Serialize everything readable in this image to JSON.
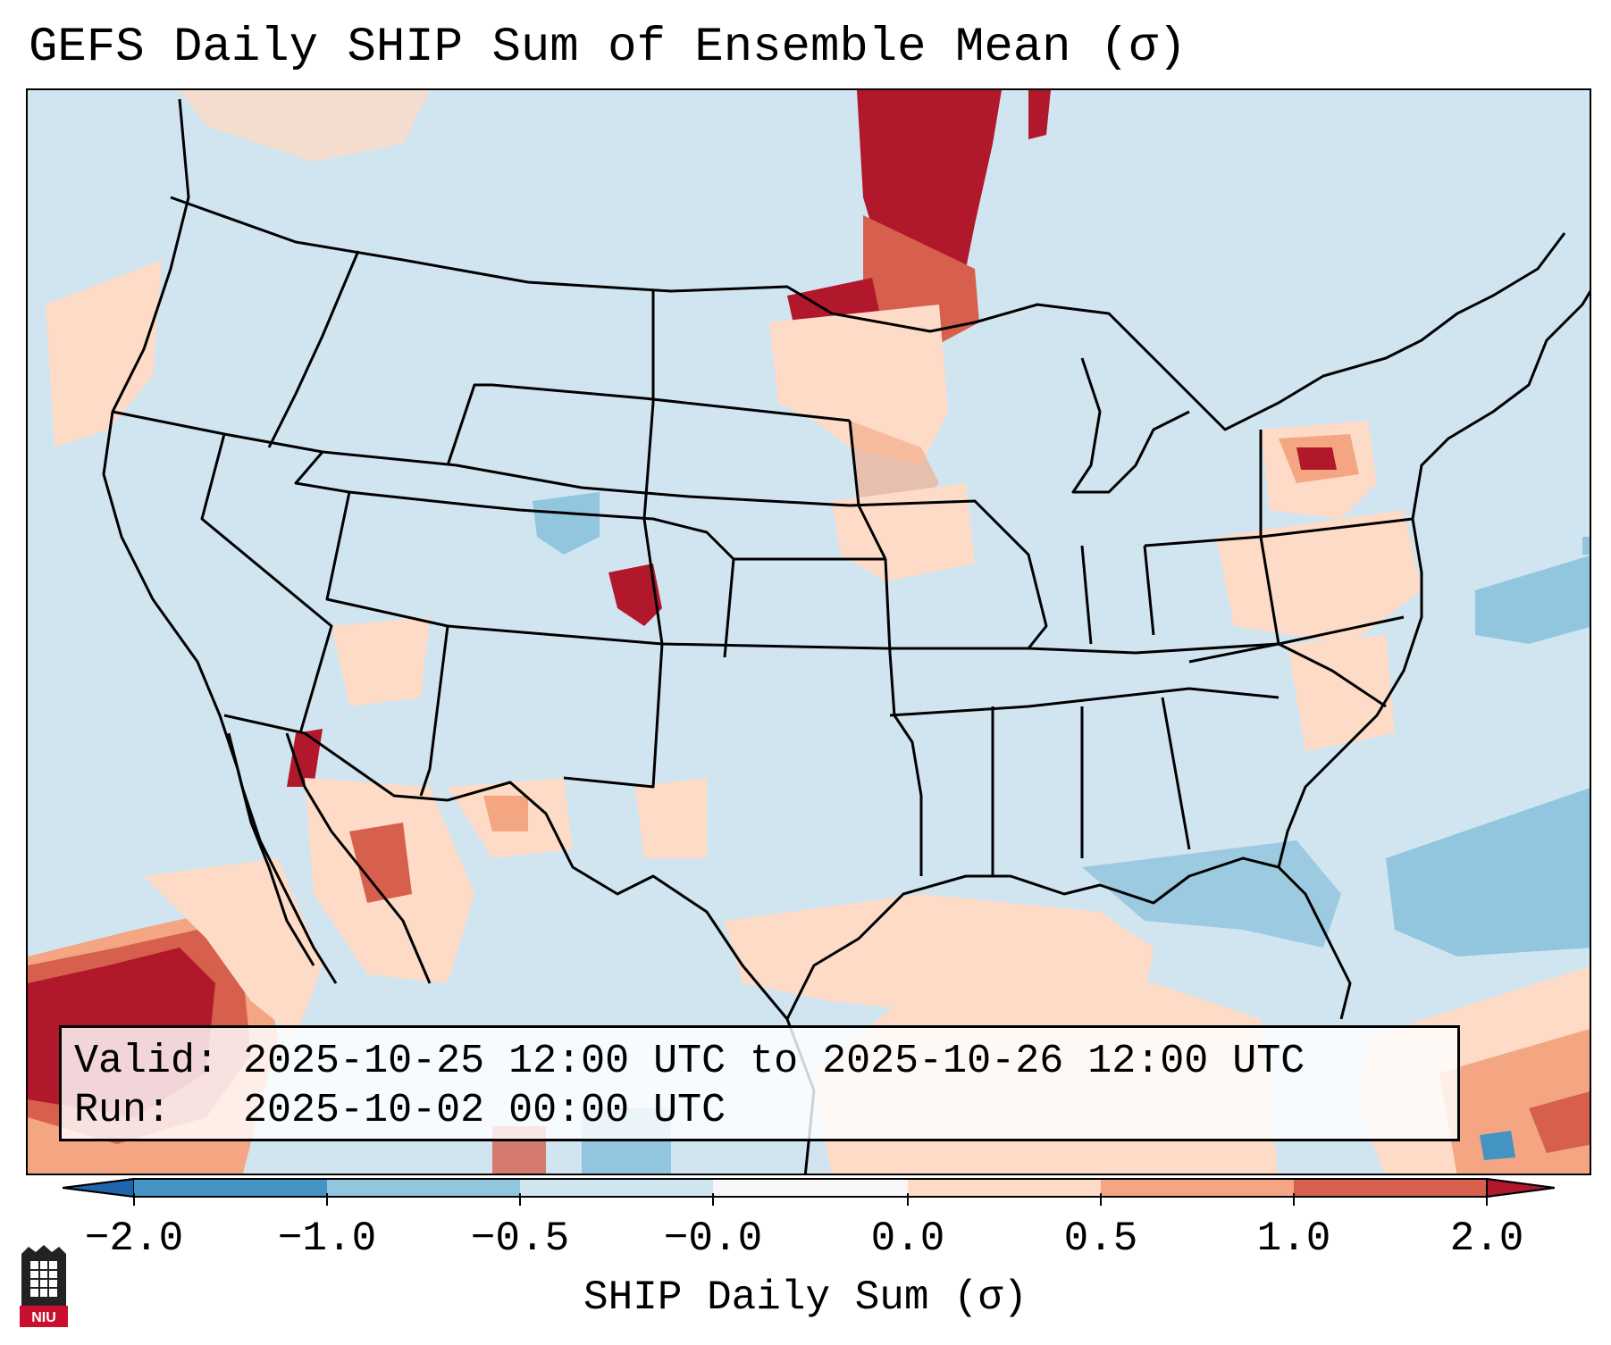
{
  "title": "GEFS Daily SHIP Sum of Ensemble Mean (σ)",
  "info": {
    "valid_label": "Valid:",
    "valid_value": "2025-10-25 12:00 UTC to 2025-10-26 12:00 UTC",
    "run_label": "Run:",
    "run_value": "2025-10-02 00:00 UTC"
  },
  "colorbar": {
    "label": "SHIP Daily Sum (σ)",
    "ticks": [
      "−2.0",
      "−1.0",
      "−0.5",
      "−0.0",
      "0.0",
      "0.5",
      "1.0",
      "2.0"
    ],
    "bins": [
      {
        "range": "<-2.0",
        "color": "#2166ac"
      },
      {
        "range": "-2.0 to -1.0",
        "color": "#4393c3"
      },
      {
        "range": "-1.0 to -0.5",
        "color": "#92c5de"
      },
      {
        "range": "-0.5 to -0.0",
        "color": "#d1e5f0"
      },
      {
        "range": "-0.0 to 0.0",
        "color": "#f7f7f7"
      },
      {
        "range": "0.0 to 0.5",
        "color": "#fddbc7"
      },
      {
        "range": "0.5 to 1.0",
        "color": "#f4a582"
      },
      {
        "range": "1.0 to 2.0",
        "color": "#d6604d"
      },
      {
        "range": ">2.0",
        "color": "#b2182b"
      }
    ]
  },
  "logo_text": "NIU"
}
